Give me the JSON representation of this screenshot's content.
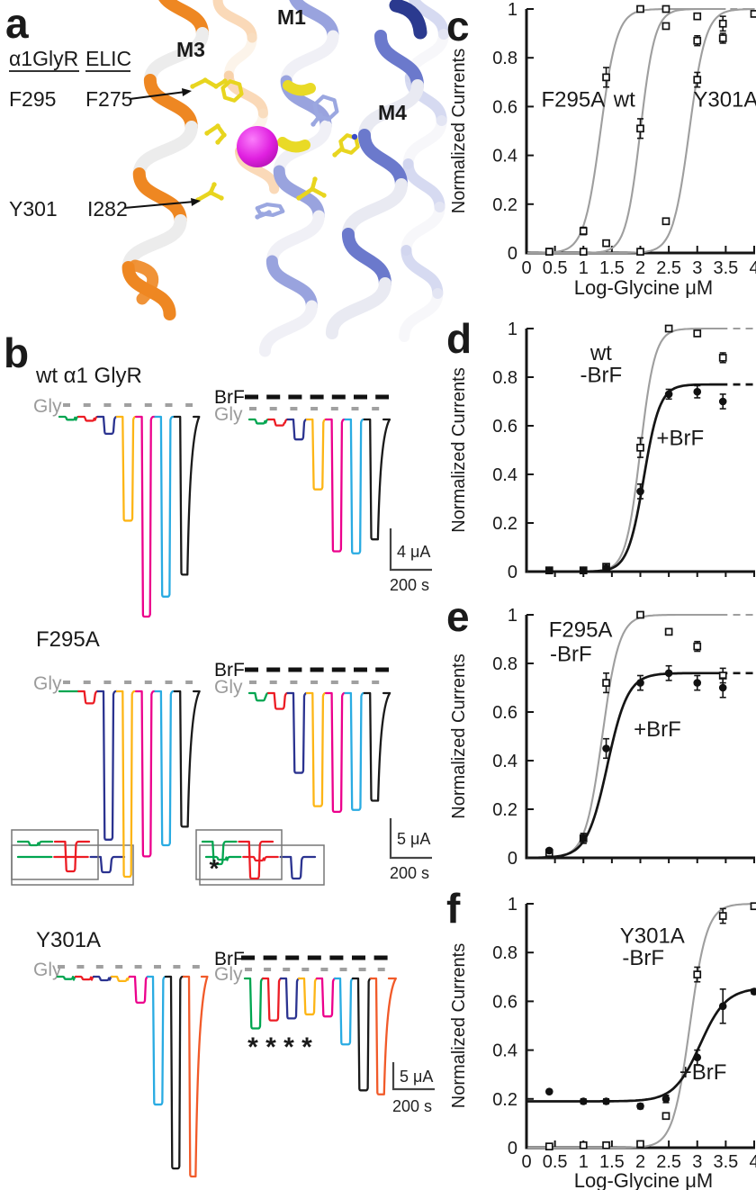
{
  "figure": {
    "panel_a": {
      "label": "a",
      "column_headers": [
        "α1GlyR",
        "ELIC"
      ],
      "residue_rows": [
        {
          "glyr": "F295",
          "elic": "F275"
        },
        {
          "glyr": "Y301",
          "elic": "I282"
        }
      ],
      "helix_labels": {
        "m3": "M3",
        "m1": "M1",
        "m4": "M4"
      },
      "colors": {
        "m3_label": "#E0221B",
        "m1_label": "#1D6FBF",
        "m4_label": "#1D6FBF",
        "m3_helix": "#EE8722",
        "m1_helix": "#99A3DE",
        "m4_helix": "#6B79CC",
        "ion_sphere": "#DD1EDD",
        "residue_sticks": "#E8D51F"
      }
    },
    "panel_b": {
      "label": "b",
      "asterisk": "*",
      "sections": [
        {
          "title": "wt α1 GlyR",
          "gly_label": "Gly",
          "brf_label": "BrF",
          "scale_current": "4 μA",
          "scale_time": "200 s",
          "colors": [
            "#00A550",
            "#EC1C24",
            "#2B3390",
            "#FDB515",
            "#EC008C",
            "#29ABE2",
            "#1A1A1A"
          ],
          "control_amps": [
            0.015,
            0.02,
            0.085,
            0.52,
            1.0,
            0.9,
            0.79
          ],
          "brf_amps": [
            0.02,
            0.03,
            0.1,
            0.35,
            0.66,
            0.67,
            0.6
          ],
          "inset_control": {
            "depths": [
              1,
              1.5,
              17
            ],
            "asterisks": 0
          },
          "inset_brf": {
            "depths": [
              3,
              4,
              24
            ],
            "asterisks": 0
          },
          "brf_asterisk_count": 0
        },
        {
          "title": "F295A",
          "gly_label": "Gly",
          "brf_label": "BrF",
          "scale_current": "5 μA",
          "scale_time": "200 s",
          "colors": [
            "#00A550",
            "#EC1C24",
            "#2B3390",
            "#FDB515",
            "#EC008C",
            "#29ABE2",
            "#1A1A1A"
          ],
          "control_amps": [
            0.01,
            0.065,
            0.8,
            1.0,
            0.89,
            0.83,
            0.73
          ],
          "brf_amps": [
            0.04,
            0.085,
            0.43,
            0.61,
            0.64,
            0.63,
            0.58
          ],
          "inset_control": {
            "depths": [
              4,
              33
            ],
            "asterisks": 0
          },
          "inset_brf": {
            "depths": [
              25,
              41
            ],
            "asterisks": 1
          },
          "brf_asterisk_count": 0
        },
        {
          "title": "Y301A",
          "gly_label": "Gly",
          "brf_label": "BrF",
          "scale_current": "5 μA",
          "scale_time": "200 s",
          "colors": [
            "#00A550",
            "#EC1C24",
            "#2B3390",
            "#FDB515",
            "#EC008C",
            "#29ABE2",
            "#1A1A1A",
            "#F15A29"
          ],
          "control_amps": [
            0.012,
            0.014,
            0.018,
            0.022,
            0.13,
            0.64,
            0.96,
            1.0
          ],
          "brf_amps": [
            0.25,
            0.21,
            0.2,
            0.18,
            0.19,
            0.33,
            0.56,
            0.58
          ],
          "brf_asterisk_count": 4
        }
      ]
    }
  },
  "chart_data": [
    {
      "id": "c",
      "panel_label": "c",
      "type": "scatter",
      "title": "",
      "xlabel": "Log-Glycine μM",
      "ylabel": "Normalized Currents",
      "xlim": [
        0,
        4
      ],
      "ylim": [
        0,
        1
      ],
      "grid": false,
      "legend_position": "none",
      "xticks": [
        {
          "v": 0,
          "label": "0"
        },
        {
          "v": 0.5,
          "label": "0.5"
        },
        {
          "v": 1,
          "label": "1"
        },
        {
          "v": 1.5,
          "label": "1.5"
        },
        {
          "v": 2,
          "label": "2"
        },
        {
          "v": 2.5,
          "label": "2.5"
        },
        {
          "v": 3,
          "label": "3"
        },
        {
          "v": 3.5,
          "label": "3.5"
        },
        {
          "v": 4,
          "label": "4"
        }
      ],
      "yticks": [
        {
          "v": 0,
          "label": "0"
        },
        {
          "v": 0.2,
          "label": "0.2"
        },
        {
          "v": 0.4,
          "label": "0.4"
        },
        {
          "v": 0.6,
          "label": "0.6"
        },
        {
          "v": 0.8,
          "label": "0.8"
        },
        {
          "v": 1,
          "label": "1"
        }
      ],
      "series": [
        {
          "name": "F295A",
          "line_color": "#9e9e9e",
          "marker": "open-square",
          "x": [
            0.4,
            1,
            1.4,
            2,
            2.45,
            3
          ],
          "y": [
            0.005,
            0.09,
            0.72,
            1.0,
            0.93,
            0.87
          ],
          "err": [
            0,
            0.015,
            0.04,
            0,
            0.012,
            0.02
          ],
          "fit": {
            "base": 0,
            "top": 1,
            "ec50": 1.3,
            "slope": 3.0,
            "solid_to": 3.45
          }
        },
        {
          "name": "wt",
          "line_color": "#9e9e9e",
          "marker": "open-square",
          "x": [
            0.4,
            1,
            1.4,
            2,
            2.45,
            3,
            3.45
          ],
          "y": [
            0.005,
            0.005,
            0.04,
            0.51,
            1.0,
            0.97,
            0.88
          ],
          "err": [
            0,
            0,
            0.01,
            0.04,
            0,
            0.01,
            0.02
          ],
          "fit": {
            "base": 0,
            "top": 1,
            "ec50": 2.0,
            "slope": 3.4,
            "solid_to": 3.5,
            "dash_to": 3.95
          }
        },
        {
          "name": "Y301A",
          "line_color": "#9e9e9e",
          "marker": "open-square",
          "x": [
            2,
            2.45,
            3,
            3.45,
            4
          ],
          "y": [
            0.005,
            0.13,
            0.71,
            0.94,
            0.98
          ],
          "err": [
            0,
            0.012,
            0.03,
            0.03,
            0.01
          ],
          "fit": {
            "base": 0,
            "top": 1,
            "ec50": 2.86,
            "slope": 3.0,
            "solid_to": 4.03
          }
        }
      ],
      "annotations": [
        {
          "text": "F295A",
          "x": 0.82,
          "y": 0.6
        },
        {
          "text": "wt",
          "x": 1.72,
          "y": 0.6
        },
        {
          "text": "Y301A",
          "x": 3.5,
          "y": 0.6
        }
      ]
    },
    {
      "id": "d",
      "panel_label": "d",
      "type": "scatter",
      "title": "",
      "xlabel": "",
      "ylabel": "Normalized Currents",
      "xlim": [
        0,
        4
      ],
      "ylim": [
        0,
        1
      ],
      "grid": false,
      "legend_position": "none",
      "xticks": [
        {
          "v": 0.5
        },
        {
          "v": 1
        },
        {
          "v": 1.5
        },
        {
          "v": 2
        },
        {
          "v": 2.5
        },
        {
          "v": 3
        },
        {
          "v": 3.5
        },
        {
          "v": 4
        }
      ],
      "yticks": [
        {
          "v": 0,
          "label": "0"
        },
        {
          "v": 0.2,
          "label": "0.2"
        },
        {
          "v": 0.4,
          "label": "0.4"
        },
        {
          "v": 0.6,
          "label": "0.6"
        },
        {
          "v": 0.8,
          "label": "0.8"
        },
        {
          "v": 1,
          "label": "1"
        }
      ],
      "series": [
        {
          "name": "wt -BrF",
          "line_color": "#9e9e9e",
          "marker": "open-square",
          "x": [
            0.4,
            1,
            1.4,
            2,
            2.5,
            3,
            3.45
          ],
          "y": [
            0.005,
            0.005,
            0.02,
            0.51,
            1.0,
            0.98,
            0.88
          ],
          "err": [
            0,
            0,
            0,
            0.04,
            0,
            0.01,
            0.02
          ],
          "fit": {
            "base": 0,
            "top": 1,
            "ec50": 2.0,
            "slope": 3.4,
            "solid_to": 3.55,
            "dash_to": 4.1
          }
        },
        {
          "name": "wt +BrF",
          "line_color": "#151515",
          "marker": "filled-circle",
          "x": [
            0.4,
            1,
            1.4,
            2,
            2.5,
            3,
            3.45
          ],
          "y": [
            0.005,
            0.005,
            0.015,
            0.33,
            0.73,
            0.74,
            0.7
          ],
          "err": [
            0,
            0,
            0,
            0.03,
            0.02,
            0.025,
            0.03
          ],
          "fit": {
            "base": 0,
            "top": 0.77,
            "ec50": 2.06,
            "slope": 3.1,
            "solid_to": 3.55,
            "dash_to": 4.1
          }
        }
      ],
      "annotations": [
        {
          "text": "wt",
          "x": 1.31,
          "y": 0.87
        },
        {
          "text": "-BrF",
          "x": 1.31,
          "y": 0.78
        },
        {
          "text": "+BrF",
          "x": 2.7,
          "y": 0.52
        }
      ]
    },
    {
      "id": "e",
      "panel_label": "e",
      "type": "scatter",
      "title": "",
      "xlabel": "",
      "ylabel": "Normalized Currents",
      "xlim": [
        0,
        4
      ],
      "ylim": [
        0,
        1
      ],
      "grid": false,
      "legend_position": "none",
      "xticks": [
        {
          "v": 0.5
        },
        {
          "v": 1
        },
        {
          "v": 1.5
        },
        {
          "v": 2
        },
        {
          "v": 2.5
        },
        {
          "v": 3
        },
        {
          "v": 3.5
        },
        {
          "v": 4
        }
      ],
      "yticks": [
        {
          "v": 0,
          "label": "0"
        },
        {
          "v": 0.2,
          "label": "0.2"
        },
        {
          "v": 0.4,
          "label": "0.4"
        },
        {
          "v": 0.6,
          "label": "0.6"
        },
        {
          "v": 0.8,
          "label": "0.8"
        },
        {
          "v": 1,
          "label": "1"
        }
      ],
      "series": [
        {
          "name": "F295A -BrF",
          "line_color": "#9e9e9e",
          "marker": "open-square",
          "x": [
            0.4,
            1,
            1.4,
            2,
            2.5,
            3,
            3.45
          ],
          "y": [
            0.02,
            0.08,
            0.72,
            1.0,
            0.93,
            0.87,
            0.75
          ],
          "err": [
            0.008,
            0.02,
            0.04,
            0,
            0.012,
            0.02,
            0.03
          ],
          "fit": {
            "base": 0,
            "top": 1,
            "ec50": 1.33,
            "slope": 2.9,
            "solid_to": 3.55,
            "dash_to": 4.1
          }
        },
        {
          "name": "F295A +BrF",
          "line_color": "#151515",
          "marker": "filled-circle",
          "x": [
            0.4,
            1,
            1.4,
            2,
            2.5,
            3,
            3.45
          ],
          "y": [
            0.03,
            0.08,
            0.45,
            0.72,
            0.76,
            0.72,
            0.7
          ],
          "err": [
            0.008,
            0.02,
            0.04,
            0.03,
            0.03,
            0.03,
            0.04
          ],
          "fit": {
            "base": 0,
            "top": 0.76,
            "ec50": 1.42,
            "slope": 2.4,
            "solid_to": 3.55,
            "dash_to": 4.1
          }
        }
      ],
      "annotations": [
        {
          "text": "F295A",
          "x": 0.95,
          "y": 0.91
        },
        {
          "text": "-BrF",
          "x": 0.78,
          "y": 0.81
        },
        {
          "text": "+BrF",
          "x": 2.3,
          "y": 0.5
        }
      ]
    },
    {
      "id": "f",
      "panel_label": "f",
      "type": "scatter",
      "title": "",
      "xlabel": "Log-Glycine μM",
      "ylabel": "Normalized Currents",
      "xlim": [
        0,
        4
      ],
      "ylim": [
        0,
        1
      ],
      "grid": false,
      "legend_position": "none",
      "xticks": [
        {
          "v": 0,
          "label": "0"
        },
        {
          "v": 0.5,
          "label": "0.5"
        },
        {
          "v": 1,
          "label": "1"
        },
        {
          "v": 1.5,
          "label": "1.5"
        },
        {
          "v": 2,
          "label": "2"
        },
        {
          "v": 2.5,
          "label": "2.5"
        },
        {
          "v": 3,
          "label": "3"
        },
        {
          "v": 3.5,
          "label": "3.5"
        },
        {
          "v": 4,
          "label": "4"
        }
      ],
      "yticks": [
        {
          "v": 0,
          "label": "0"
        },
        {
          "v": 0.2,
          "label": "0.2"
        },
        {
          "v": 0.4,
          "label": "0.4"
        },
        {
          "v": 0.6,
          "label": "0.6"
        },
        {
          "v": 0.8,
          "label": "0.8"
        },
        {
          "v": 1,
          "label": "1"
        }
      ],
      "series": [
        {
          "name": "Y301A -BrF",
          "line_color": "#9e9e9e",
          "marker": "open-square",
          "x": [
            0.4,
            1,
            1.4,
            2,
            2.45,
            3,
            3.45,
            4
          ],
          "y": [
            0.005,
            0.01,
            0.01,
            0.015,
            0.13,
            0.71,
            0.95,
            0.99
          ],
          "err": [
            0,
            0,
            0,
            0,
            0.012,
            0.03,
            0.03,
            0.01
          ],
          "fit": {
            "base": 0,
            "top": 1,
            "ec50": 2.87,
            "slope": 2.9,
            "solid_to": 4.03
          }
        },
        {
          "name": "Y301A +BrF",
          "line_color": "#151515",
          "marker": "filled-circle",
          "x": [
            0.4,
            1,
            1.4,
            2,
            2.45,
            3,
            3.45,
            4
          ],
          "y": [
            0.23,
            0.19,
            0.19,
            0.17,
            0.2,
            0.37,
            0.58,
            0.64
          ],
          "err": [
            0,
            0.01,
            0.01,
            0.01,
            0.015,
            0.03,
            0.07,
            0.01
          ],
          "fit": {
            "base": 0.19,
            "top": 0.655,
            "ec50": 3.05,
            "slope": 1.9,
            "solid_to": 4.03
          }
        }
      ],
      "annotations": [
        {
          "text": "Y301A",
          "x": 2.21,
          "y": 0.84
        },
        {
          "text": "-BrF",
          "x": 2.05,
          "y": 0.75
        },
        {
          "text": "+BrF",
          "x": 3.1,
          "y": 0.28
        }
      ]
    }
  ]
}
